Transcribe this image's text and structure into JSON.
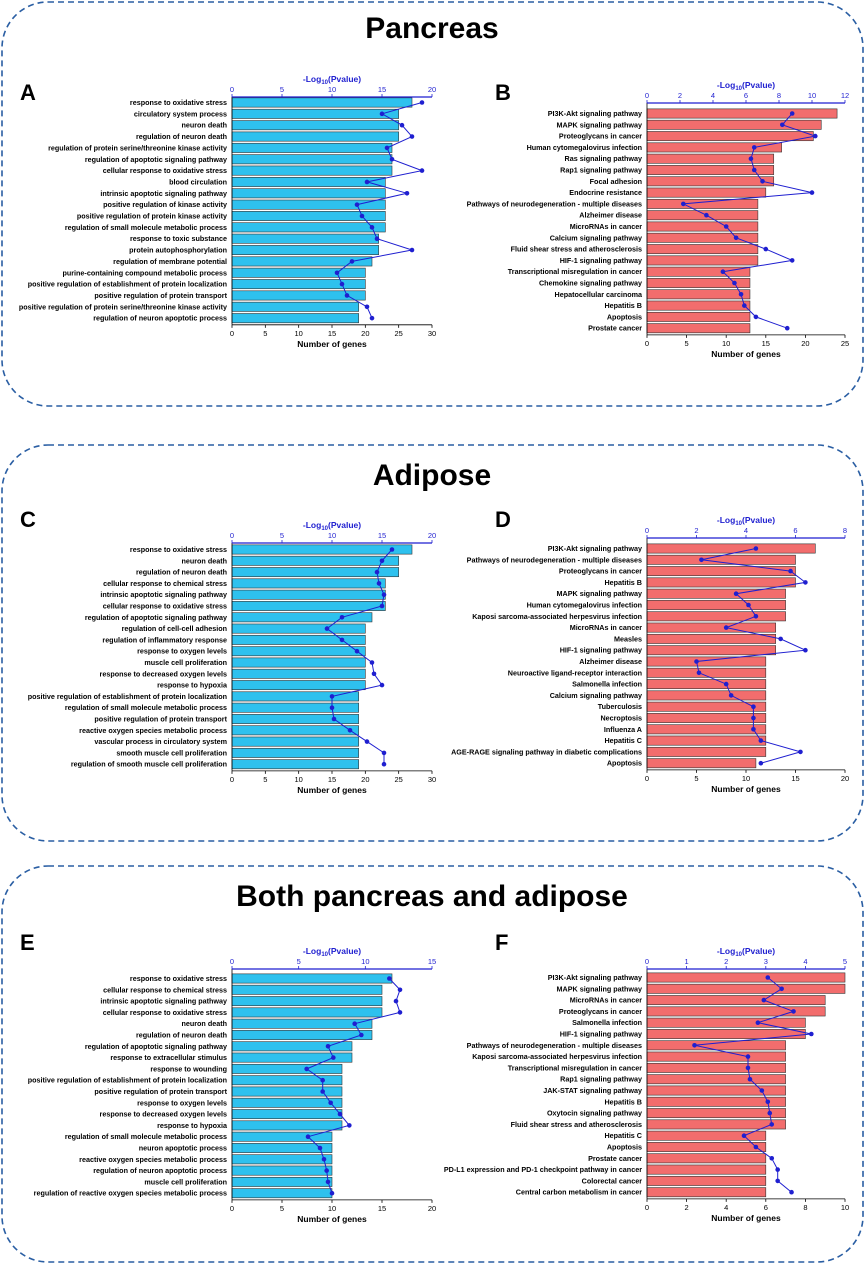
{
  "colors": {
    "blue_bar": "#2ec1ee",
    "red_bar": "#f26d6d",
    "line": "#1f1fd0",
    "frame": "#2a5ea3",
    "bar_edge": "#333333"
  },
  "sections": [
    {
      "title": "Pancreas"
    },
    {
      "title": "Adipose"
    },
    {
      "title": "Both pancreas and adipose"
    }
  ],
  "axis_text": {
    "bottom_title": "Number of genes",
    "top_title": "-Log",
    "top_title_sub": "10",
    "top_title_tail": "(Pvalue)"
  },
  "chart_data": [
    {
      "panel": "A",
      "type": "bar",
      "categories": [
        "response to oxidative stress",
        "circulatory system process",
        "neuron death",
        "regulation of neuron death",
        "regulation of protein serine/threonine kinase activity",
        "regulation of apoptotic signaling pathway",
        "cellular response to oxidative stress",
        "blood circulation",
        "intrinsic apoptotic signaling pathway",
        "positive regulation of kinase activity",
        "positive regulation of protein kinase activity",
        "regulation of small molecule metabolic process",
        "response to toxic substance",
        "protein autophosphorylation",
        "regulation of membrane potential",
        "purine-containing compound metabolic process",
        "positive regulation of establishment of protein localization",
        "positive regulation of protein transport",
        "positive regulation of protein serine/threonine kinase activity",
        "regulation of neuron apoptotic process"
      ],
      "values": [
        27,
        25,
        25,
        25,
        24,
        24,
        24,
        23,
        23,
        23,
        23,
        23,
        22,
        22,
        21,
        20,
        20,
        20,
        19,
        19
      ],
      "line_values": [
        19,
        15,
        17,
        18,
        15.5,
        16,
        19,
        13.5,
        17.5,
        12.5,
        13,
        14,
        14.5,
        18,
        12,
        10.5,
        11,
        11.5,
        13.5,
        14
      ],
      "xlim": [
        0,
        30
      ],
      "xticks": [
        0,
        5,
        10,
        15,
        20,
        25,
        30
      ],
      "top_lim": [
        0,
        20
      ],
      "top_ticks": [
        0,
        5,
        10,
        15,
        20
      ],
      "xlabel": "Number of genes",
      "top_label": "-Log10(Pvalue)",
      "color": "blue"
    },
    {
      "panel": "B",
      "type": "bar",
      "categories": [
        "PI3K-Akt signaling pathway",
        "MAPK signaling pathway",
        "Proteoglycans in cancer",
        "Human cytomegalovirus infection",
        "Ras signaling pathway",
        "Rap1 signaling pathway",
        "Focal adhesion",
        "Endocrine resistance",
        "Pathways of neurodegeneration - multiple diseases",
        "Alzheimer disease",
        "MicroRNAs in cancer",
        "Calcium signaling pathway",
        "Fluid shear stress and atherosclerosis",
        "HIF-1 signaling pathway",
        "Transcriptional misregulation in cancer",
        "Chemokine signaling pathway",
        "Hepatocellular carcinoma",
        "Hepatitis B",
        "Apoptosis",
        "Prostate cancer"
      ],
      "values": [
        24,
        22,
        21,
        17,
        16,
        16,
        16,
        15,
        14,
        14,
        14,
        14,
        14,
        14,
        13,
        13,
        13,
        13,
        13,
        13
      ],
      "line_values": [
        8.8,
        8.2,
        10.2,
        6.5,
        6.3,
        6.5,
        7,
        10,
        2.2,
        3.6,
        4.8,
        5.4,
        7.2,
        8.8,
        4.6,
        5.3,
        5.7,
        5.9,
        6.6,
        8.5
      ],
      "xlim": [
        0,
        25
      ],
      "xticks": [
        0,
        5,
        10,
        15,
        20,
        25
      ],
      "top_lim": [
        0,
        12
      ],
      "top_ticks": [
        0,
        2,
        4,
        6,
        8,
        10,
        12
      ],
      "xlabel": "Number of genes",
      "top_label": "-Log10(Pvalue)",
      "color": "red"
    },
    {
      "panel": "C",
      "type": "bar",
      "categories": [
        "response to oxidative stress",
        "neuron death",
        "regulation of neuron death",
        "cellular response to chemical stress",
        "intrinsic apoptotic signaling pathway",
        "cellular response to oxidative stress",
        "regulation of apoptotic signaling pathway",
        "regulation of cell-cell adhesion",
        "regulation of inflammatory response",
        "response to oxygen levels",
        "muscle cell proliferation",
        "response to decreased oxygen levels",
        "response to hypoxia",
        "positive regulation of establishment of protein localization",
        "regulation of small molecule metabolic process",
        "positive regulation of protein transport",
        "reactive oxygen species metabolic process",
        "vascular process in circulatory system",
        "smooth muscle cell proliferation",
        "regulation of smooth muscle cell proliferation"
      ],
      "values": [
        27,
        25,
        25,
        23,
        23,
        23,
        21,
        20,
        20,
        20,
        20,
        20,
        20,
        19,
        19,
        19,
        19,
        19,
        19,
        19
      ],
      "line_values": [
        16,
        15,
        14.5,
        14.7,
        15.2,
        15,
        11,
        9.5,
        11,
        12.5,
        14,
        14.2,
        15,
        10,
        10,
        10.2,
        11.8,
        13.5,
        15.2,
        15.2
      ],
      "xlim": [
        0,
        30
      ],
      "xticks": [
        0,
        5,
        10,
        15,
        20,
        25,
        30
      ],
      "top_lim": [
        0,
        20
      ],
      "top_ticks": [
        0,
        5,
        10,
        15,
        20
      ],
      "xlabel": "Number of genes",
      "top_label": "-Log10(Pvalue)",
      "color": "blue"
    },
    {
      "panel": "D",
      "type": "bar",
      "categories": [
        "PI3K-Akt signaling pathway",
        "Pathways of neurodegeneration - multiple diseases",
        "Proteoglycans in cancer",
        "Hepatitis B",
        "MAPK signaling pathway",
        "Human cytomegalovirus infection",
        "Kaposi sarcoma-associated herpesvirus infection",
        "MicroRNAs in cancer",
        "Measles",
        "HIF-1 signaling pathway",
        "Alzheimer disease",
        "Neuroactive ligand-receptor interaction",
        "Salmonella infection",
        "Calcium signaling pathway",
        "Tuberculosis",
        "Necroptosis",
        "Influenza A",
        "Hepatitis C",
        "AGE-RAGE signaling pathway in diabetic complications",
        "Apoptosis"
      ],
      "values": [
        17,
        15,
        15,
        15,
        14,
        14,
        14,
        13,
        13,
        13,
        12,
        12,
        12,
        12,
        12,
        12,
        12,
        12,
        12,
        11
      ],
      "line_values": [
        4.4,
        2.2,
        5.8,
        6.4,
        3.6,
        4.1,
        4.4,
        3.2,
        5.4,
        6.4,
        2,
        2.1,
        3.2,
        3.4,
        4.3,
        4.3,
        4.3,
        4.6,
        6.2,
        4.6
      ],
      "xlim": [
        0,
        20
      ],
      "xticks": [
        0,
        5,
        10,
        15,
        20
      ],
      "top_lim": [
        0,
        8
      ],
      "top_ticks": [
        0,
        2,
        4,
        6,
        8
      ],
      "xlabel": "Number of genes",
      "top_label": "-Log10(Pvalue)",
      "color": "red"
    },
    {
      "panel": "E",
      "type": "bar",
      "categories": [
        "response to oxidative stress",
        "cellular response to chemical stress",
        "intrinsic apoptotic signaling pathway",
        "cellular response to oxidative stress",
        "neuron death",
        "regulation of neuron death",
        "regulation of apoptotic signaling pathway",
        "response to extracellular stimulus",
        "response to wounding",
        "positive regulation of establishment of protein localization",
        "positive regulation of protein transport",
        "response to oxygen levels",
        "response to decreased oxygen levels",
        "response to hypoxia",
        "regulation of small molecule metabolic process",
        "neuron apoptotic process",
        "reactive oxygen species metabolic process",
        "regulation of neuron apoptotic process",
        "muscle cell proliferation",
        "regulation of reactive oxygen species metabolic process"
      ],
      "values": [
        16,
        15,
        15,
        15,
        14,
        14,
        12,
        12,
        11,
        11,
        11,
        11,
        11,
        11,
        10,
        10,
        10,
        10,
        10,
        10
      ],
      "line_values": [
        11.8,
        12.6,
        12.3,
        12.6,
        9.2,
        9.7,
        7.2,
        7.6,
        5.6,
        6.8,
        6.8,
        7.4,
        8.1,
        8.8,
        5.7,
        6.6,
        6.9,
        7.1,
        7.2,
        7.5
      ],
      "xlim": [
        0,
        20
      ],
      "xticks": [
        0,
        5,
        10,
        15,
        20
      ],
      "top_lim": [
        0,
        15
      ],
      "top_ticks": [
        0,
        5,
        10,
        15
      ],
      "xlabel": "Number of genes",
      "top_label": "-Log10(Pvalue)",
      "color": "blue"
    },
    {
      "panel": "F",
      "type": "bar",
      "categories": [
        "PI3K-Akt signaling pathway",
        "MAPK signaling pathway",
        "MicroRNAs in cancer",
        "Proteoglycans in cancer",
        "Salmonella infection",
        "HIF-1 signaling pathway",
        "Pathways of neurodegeneration - multiple diseases",
        "Kaposi sarcoma-associated herpesvirus infection",
        "Transcriptional misregulation in cancer",
        "Rap1 signaling pathway",
        "JAK-STAT signaling pathway",
        "Hepatitis B",
        "Oxytocin signaling pathway",
        "Fluid shear stress and atherosclerosis",
        "Hepatitis C",
        "Apoptosis",
        "Prostate cancer",
        "PD-L1 expression and PD-1 checkpoint pathway in cancer",
        "Colorectal cancer",
        "Central carbon metabolism in cancer"
      ],
      "values": [
        10,
        10,
        9,
        9,
        8,
        8,
        7,
        7,
        7,
        7,
        7,
        7,
        7,
        7,
        6,
        6,
        6,
        6,
        6,
        6
      ],
      "line_values": [
        3.05,
        3.4,
        2.95,
        3.7,
        2.8,
        4.15,
        1.2,
        2.55,
        2.55,
        2.6,
        2.9,
        3.05,
        3.1,
        3.15,
        2.45,
        2.75,
        3.15,
        3.3,
        3.3,
        3.65
      ],
      "xlim": [
        0,
        10
      ],
      "xticks": [
        0,
        2,
        4,
        6,
        8,
        10
      ],
      "top_lim": [
        0,
        5
      ],
      "top_ticks": [
        0,
        1,
        2,
        3,
        4,
        5
      ],
      "xlabel": "Number of genes",
      "top_label": "-Log10(Pvalue)",
      "color": "red"
    }
  ]
}
